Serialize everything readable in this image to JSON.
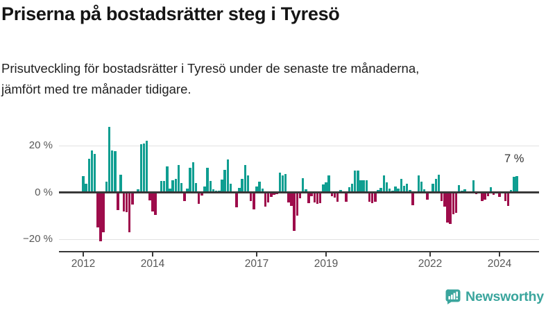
{
  "header": {
    "title": "Priserna på bostadsrätter steg i Tyresö",
    "subtitle_line1": "Prisutveckling för bostadsrätter i Tyresö under de senaste tre månaderna,",
    "subtitle_line2": "jämfört med tre månader tidigare."
  },
  "chart_data": {
    "type": "bar",
    "title": "Priserna på bostadsrätter steg i Tyresö",
    "unit": "%",
    "frequency": "monthly",
    "start_month": "2012-01",
    "grid": true,
    "legend": false,
    "ylim": [
      -24,
      30
    ],
    "positive_color": "#0F9E91",
    "negative_color": "#9E0C4B",
    "values": [
      7,
      3.6,
      14.5,
      18,
      16.5,
      -15,
      -21,
      -17,
      4.6,
      28,
      18,
      17.5,
      -7.7,
      7.6,
      -8.1,
      -8.3,
      -17,
      -5.1,
      0.4,
      1.4,
      20.5,
      21,
      22,
      -3.3,
      -8.2,
      -9.5,
      0.5,
      5,
      5,
      11,
      1.5,
      5.2,
      5.8,
      11.8,
      3.9,
      -3.6,
      1.5,
      10.6,
      13,
      4,
      -4.8,
      -1.4,
      2.4,
      10.4,
      4.8,
      1.4,
      0.6,
      0.6,
      5.4,
      9.7,
      14,
      3.7,
      0.5,
      -6.3,
      1.8,
      5.8,
      11.6,
      7.4,
      -3.6,
      -7.4,
      2.5,
      4.7,
      1.6,
      -6.1,
      -4.4,
      -1.8,
      -1.1,
      -0.8,
      8.3,
      7.2,
      7.9,
      -4.4,
      -5.8,
      -16.5,
      -10,
      -2.5,
      6.2,
      1.3,
      -4.6,
      -1.5,
      -4.4,
      -5,
      -4.6,
      3.4,
      4.4,
      7.4,
      -1.5,
      -2.2,
      -4.1,
      1,
      0.5,
      -3.9,
      2.3,
      3.7,
      9.4,
      9.4,
      5.2,
      5.2,
      5.2,
      -4.1,
      -4.6,
      -4.1,
      1.1,
      1.8,
      7.2,
      4.2,
      1.5,
      0.8,
      2.5,
      1.5,
      5.8,
      2.7,
      3.7,
      1,
      -5.6,
      0.3,
      7.4,
      4.7,
      1.3,
      -3.2,
      0.3,
      3.7,
      5.9,
      7.7,
      -3.6,
      -6.1,
      -13,
      -13.5,
      -9.4,
      -8.6,
      3,
      0.8,
      1.3,
      0.3,
      0.2,
      5.2,
      -0.7,
      -0.5,
      -3.6,
      -3,
      -1.7,
      2.3,
      -0.9,
      -0.5,
      -1.9,
      -0.3,
      -3.6,
      -5.8,
      1,
      6.7,
      7
    ],
    "yticks": [
      {
        "value": 20,
        "label": "20 %"
      },
      {
        "value": 0,
        "label": "0 %"
      },
      {
        "value": -20,
        "label": "−20 %"
      }
    ],
    "xticks": [
      {
        "label": "2012",
        "month_index": 0
      },
      {
        "label": "2014",
        "month_index": 24
      },
      {
        "label": "2017",
        "month_index": 60
      },
      {
        "label": "2019",
        "month_index": 84
      },
      {
        "label": "2022",
        "month_index": 120
      },
      {
        "label": "2024",
        "month_index": 144
      }
    ],
    "annotation": {
      "text": "7 %",
      "value": 7
    }
  },
  "footer": {
    "brand": "Newsworthy",
    "brand_color": "#3AA59D",
    "logo_icon": "bar-chart-speech-bubble-icon"
  }
}
